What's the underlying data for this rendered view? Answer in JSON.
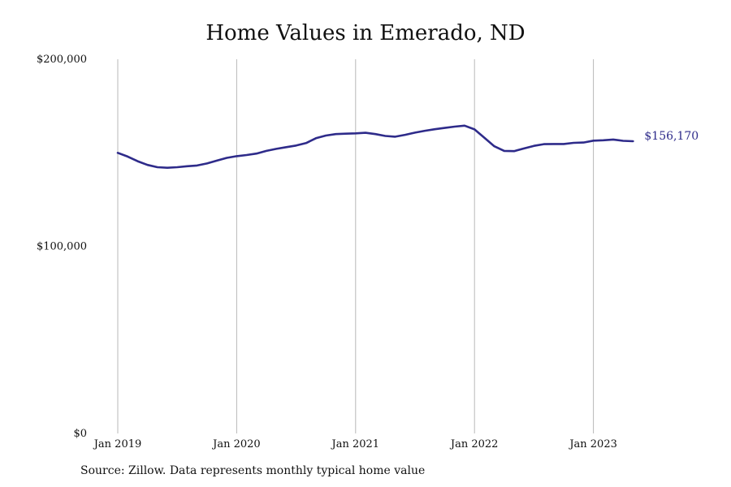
{
  "chart_data": {
    "type": "line",
    "title": "Home Values in Emerado, ND",
    "xlabel": "",
    "ylabel": "",
    "ylim": [
      0,
      200000
    ],
    "yticks": [
      {
        "value": 0,
        "label": "$0"
      },
      {
        "value": 100000,
        "label": "$100,000"
      },
      {
        "value": 200000,
        "label": "$200,000"
      }
    ],
    "xticks": [
      {
        "value": "2019-01",
        "label": "Jan 2019"
      },
      {
        "value": "2020-01",
        "label": "Jan 2020"
      },
      {
        "value": "2021-01",
        "label": "Jan 2021"
      },
      {
        "value": "2022-01",
        "label": "Jan 2022"
      },
      {
        "value": "2023-01",
        "label": "Jan 2023"
      }
    ],
    "grid": "vertical at year ticks",
    "line_color": "#2e2b8a",
    "end_label": "$156,170",
    "series": [
      {
        "x": [
          "2019-01",
          "2019-02",
          "2019-03",
          "2019-04",
          "2019-05",
          "2019-06",
          "2019-07",
          "2019-08",
          "2019-09",
          "2019-10",
          "2019-11",
          "2019-12",
          "2020-01",
          "2020-02",
          "2020-03",
          "2020-04",
          "2020-05",
          "2020-06",
          "2020-07",
          "2020-08",
          "2020-09",
          "2020-10",
          "2020-11",
          "2020-12",
          "2021-01",
          "2021-02",
          "2021-03",
          "2021-04",
          "2021-05",
          "2021-06",
          "2021-07",
          "2021-08",
          "2021-09",
          "2021-10",
          "2021-11",
          "2021-12",
          "2022-01",
          "2022-02",
          "2022-03",
          "2022-04",
          "2022-05",
          "2022-06",
          "2022-07",
          "2022-08",
          "2022-09",
          "2022-10",
          "2022-11",
          "2022-12",
          "2023-01",
          "2023-02",
          "2023-03",
          "2023-04",
          "2023-05"
        ],
        "values": [
          150000,
          148000,
          145500,
          143500,
          142300,
          142000,
          142300,
          142800,
          143200,
          144300,
          145800,
          147300,
          148200,
          148800,
          149600,
          151000,
          152100,
          153000,
          153900,
          155200,
          157800,
          159200,
          160000,
          160200,
          160400,
          160700,
          160000,
          159000,
          158600,
          159600,
          160800,
          161800,
          162600,
          163300,
          164000,
          164500,
          162500,
          158000,
          153500,
          151000,
          150900,
          152300,
          153700,
          154600,
          154700,
          154700,
          155300,
          155500,
          156500,
          156700,
          157100,
          156400,
          156170
        ]
      }
    ]
  },
  "footer": {
    "source": "Source: Zillow. Data represents monthly typical home value"
  }
}
